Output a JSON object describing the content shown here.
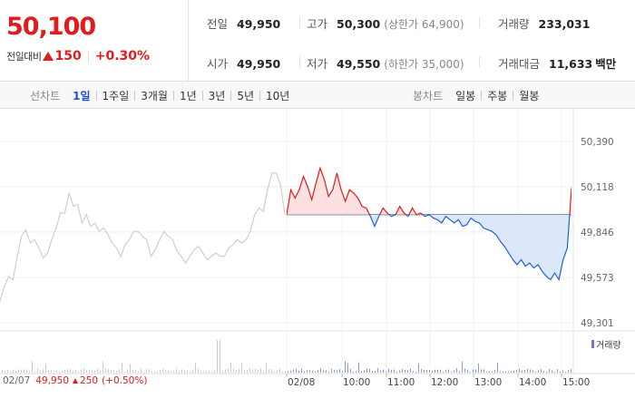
{
  "quote": {
    "price": "50,100",
    "change_label": "전일대비",
    "change_value": "150",
    "change_pct": "+0.30%"
  },
  "stats": {
    "prev_close": {
      "label": "전일",
      "value": "49,950"
    },
    "high": {
      "label": "고가",
      "value": "50,300",
      "sub": "(상한가 64,900)"
    },
    "volume": {
      "label": "거래량",
      "value": "233,031"
    },
    "open": {
      "label": "시가",
      "value": "49,950"
    },
    "low": {
      "label": "저가",
      "value": "49,550",
      "sub": "(하한가 35,000)"
    },
    "amount": {
      "label": "거래대금",
      "value": "11,633",
      "unit": "백만"
    }
  },
  "line_tabs": {
    "title": "선차트",
    "items": [
      "1일",
      "1주일",
      "3개월",
      "1년",
      "3년",
      "5년",
      "10년"
    ],
    "active": "1일"
  },
  "candle_tabs": {
    "title": "봉차트",
    "items": [
      "일봉",
      "주봉",
      "월봉"
    ]
  },
  "chart_data": {
    "type": "line",
    "baseline": 49950,
    "ylim": [
      49301,
      50390
    ],
    "y_ticks": [
      "50,390",
      "50,118",
      "49,846",
      "49,573",
      "49,301"
    ],
    "x_ticks": [
      "02/08",
      "10:00",
      "11:00",
      "12:00",
      "13:00",
      "14:00",
      "15:00"
    ],
    "volume_label": "거래량",
    "prev_day": {
      "date": "02/07",
      "close": "49,950",
      "change": "250",
      "change_pct": "(+0.50%)"
    },
    "series": [
      {
        "values": [
          49430,
          49520,
          49580,
          49560,
          49700,
          49820,
          49860,
          49780,
          49800,
          49750,
          49690,
          49720,
          49800,
          49870,
          49960,
          49960,
          50080,
          50000,
          50010,
          49900,
          49950,
          49880,
          49900,
          49850,
          49870,
          49830,
          49780,
          49750,
          49700,
          49770,
          49800,
          49850,
          49850,
          49820,
          49800,
          49700,
          49740,
          49800,
          49850,
          49820,
          49800,
          49730,
          49700,
          49660,
          49700,
          49740,
          49760,
          49720,
          49680,
          49700,
          49720,
          49700,
          49700,
          49750,
          49770,
          49800,
          49780,
          49800,
          49850,
          49950,
          49990,
          49970,
          50100,
          50200,
          50200,
          50130,
          49950
        ]
      },
      {
        "values": [
          49950,
          50100,
          50050,
          50100,
          50180,
          50120,
          50040,
          50140,
          50230,
          50160,
          50060,
          50100,
          50200,
          50100,
          50030,
          50100,
          50080,
          50050,
          50000,
          49990,
          49940,
          49880,
          49940,
          49990,
          49960,
          49940,
          49950,
          50000,
          49960,
          49940,
          49990,
          49950,
          49960,
          49940,
          49950,
          49930,
          49920,
          49900,
          49940,
          49920,
          49900,
          49920,
          49880,
          49890,
          49930,
          49910,
          49900,
          49870,
          49860,
          49850,
          49830,
          49790,
          49760,
          49720,
          49680,
          49650,
          49680,
          49640,
          49660,
          49630,
          49650,
          49610,
          49580,
          49560,
          49600,
          49560,
          49680,
          49750,
          50110
        ]
      }
    ]
  },
  "colors": {
    "up": "#e21b1b",
    "down": "#1e62d2",
    "prev_line": "#cfcfcf",
    "accent": "#1e4fc7"
  }
}
